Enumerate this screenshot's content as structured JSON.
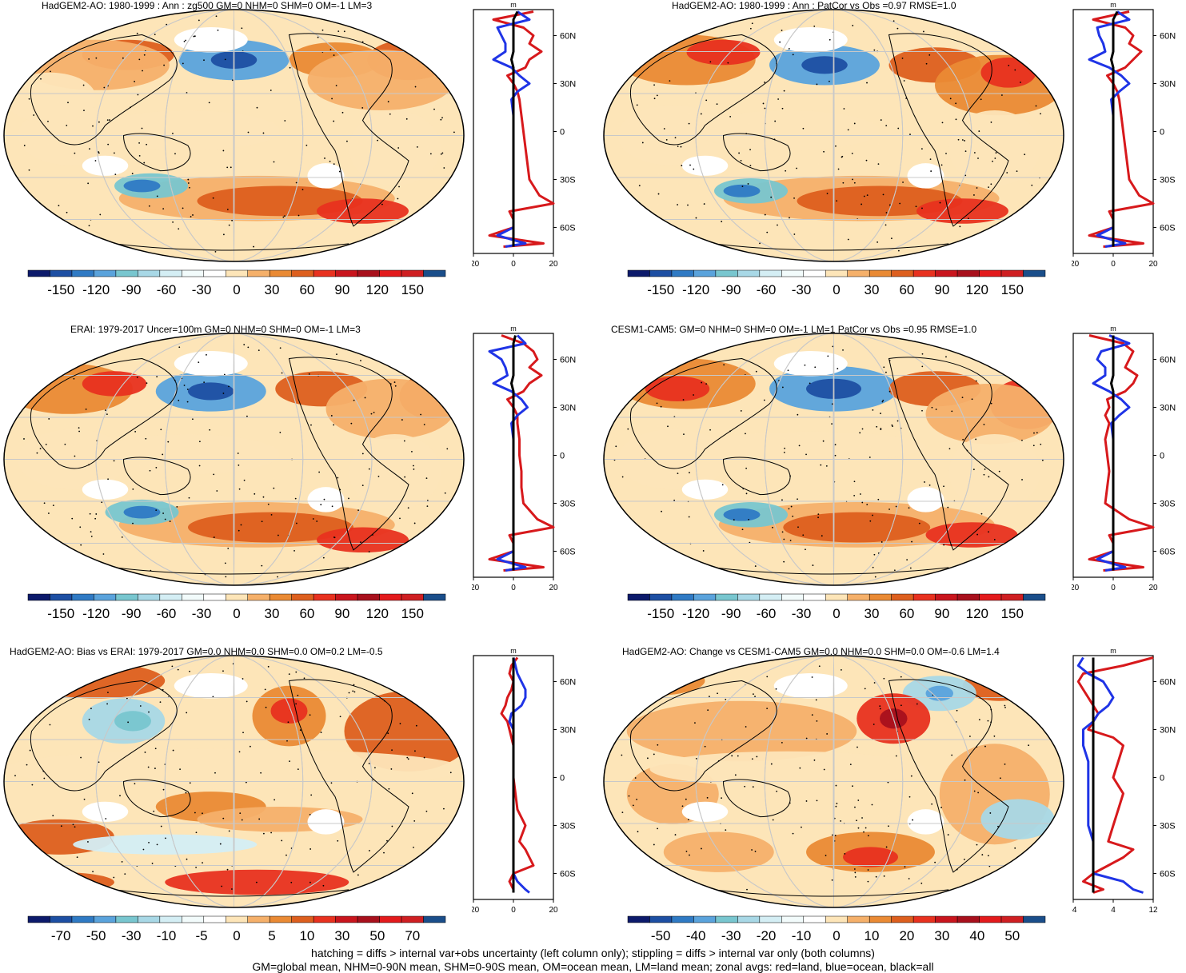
{
  "palette": {
    "blues": [
      "#0c1a6b",
      "#1d4fa3",
      "#2f7ac4",
      "#5aa3dc",
      "#78c6cf",
      "#a8d8e6",
      "#d4eef4",
      "#f2fbfb"
    ],
    "reds": [
      "#fde5b8",
      "#f5b06a",
      "#ea8a34",
      "#dd5f1e",
      "#e8311f",
      "#c9151d",
      "#a8101c",
      "#e31a1c",
      "#cf1f22"
    ],
    "zero": "#ffffff",
    "land_line": "#d7191c",
    "ocean_line": "#1f34e6",
    "all_line": "#000000"
  },
  "panels": [
    {
      "id": "p1",
      "title": "HadGEM2-AO: 1980-1999 : Ann : zg500 GM=0 NHM=0 SHM=0 OM=-1 LM=3",
      "colorbar_labels": [
        "-150",
        "-120",
        "-90",
        "-60",
        "-30",
        "0",
        "30",
        "60",
        "90",
        "120",
        "150"
      ],
      "zonal_header": "m",
      "zonal_xticks": [
        "-20",
        "0",
        "20"
      ],
      "zonal_yticks": [
        "60N",
        "30N",
        "0",
        "30S",
        "60S"
      ]
    },
    {
      "id": "p2",
      "title": "HadGEM2-AO: 1980-1999 : Ann : PatCor vs Obs =0.97 RMSE=1.0",
      "colorbar_labels": [
        "-150",
        "-120",
        "-90",
        "-60",
        "-30",
        "0",
        "30",
        "60",
        "90",
        "120",
        "150"
      ],
      "zonal_header": "m",
      "zonal_xticks": [
        "-20",
        "0",
        "20"
      ],
      "zonal_yticks": [
        "60N",
        "30N",
        "0",
        "30S",
        "60S"
      ]
    },
    {
      "id": "p3",
      "title": "ERAI: 1979-2017 Uncer=100m GM=0 NHM=0 SHM=0 OM=-1 LM=3",
      "colorbar_labels": [
        "-150",
        "-120",
        "-90",
        "-60",
        "-30",
        "0",
        "30",
        "60",
        "90",
        "120",
        "150"
      ],
      "zonal_header": "m",
      "zonal_xticks": [
        "-20",
        "0",
        "20"
      ],
      "zonal_yticks": [
        "60N",
        "30N",
        "0",
        "30S",
        "60S"
      ]
    },
    {
      "id": "p4",
      "title": "CESM1-CAM5: GM=0 NHM=0 SHM=0 OM=-1 LM=1 PatCor vs Obs =0.95 RMSE=1.0",
      "colorbar_labels": [
        "-150",
        "-120",
        "-90",
        "-60",
        "-30",
        "0",
        "30",
        "60",
        "90",
        "120",
        "150"
      ],
      "zonal_header": "m",
      "zonal_xticks": [
        "-20",
        "0",
        "20"
      ],
      "zonal_yticks": [
        "60N",
        "30N",
        "0",
        "30S",
        "60S"
      ]
    },
    {
      "id": "p5",
      "title": "HadGEM2-AO: Bias vs ERAI: 1979-2017 GM=0.0 NHM=0.0 SHM=0.0 OM=0.2 LM=-0.5",
      "colorbar_labels": [
        "-70",
        "-50",
        "-30",
        "-10",
        "-5",
        "0",
        "5",
        "10",
        "30",
        "50",
        "70"
      ],
      "zonal_header": "m",
      "zonal_xticks": [
        "-20",
        "0",
        "20"
      ],
      "zonal_yticks": [
        "60N",
        "30N",
        "0",
        "30S",
        "60S"
      ]
    },
    {
      "id": "p6",
      "title": "HadGEM2-AO: Change vs CESM1-CAM5 GM=0.0 NHM=0.0 SHM=0.0 OM=-0.6 LM=1.4",
      "colorbar_labels": [
        "-50",
        "-40",
        "-30",
        "-20",
        "-10",
        "0",
        "10",
        "20",
        "30",
        "40",
        "50"
      ],
      "zonal_header": "m",
      "zonal_xticks": [
        "-4",
        "4",
        "12"
      ],
      "zonal_yticks": [
        "60N",
        "30N",
        "0",
        "30S",
        "60S"
      ]
    }
  ],
  "footer": {
    "line1": "hatching = diffs > internal var+obs uncertainty (left column only); stippling = diffs > internal var only (both columns)",
    "line2": "GM=global mean, NHM=0-90N mean, SHM=0-90S mean, OM=ocean mean, LM=land mean; zonal avgs: red=land, blue=ocean, black=all"
  },
  "chart_data": [
    {
      "type": "heatmap",
      "title": "HadGEM2-AO: 1980-1999 : Ann : zg500 GM=0 NHM=0 SHM=0 OM=-1 LM=3",
      "colorbar": [
        -150,
        -120,
        -90,
        -60,
        -30,
        0,
        30,
        60,
        90,
        120,
        150
      ],
      "zonal_means": {
        "lat": [
          75,
          70,
          65,
          60,
          55,
          50,
          45,
          40,
          35,
          30,
          25,
          20,
          10,
          0,
          -10,
          -20,
          -30,
          -40,
          -45,
          -50,
          -55,
          -60,
          -65,
          -70,
          -72
        ],
        "land": [
          10,
          -10,
          5,
          10,
          8,
          14,
          8,
          6,
          -3,
          0,
          2,
          3,
          4,
          5,
          6,
          7,
          8,
          13,
          20,
          -2,
          0,
          0,
          -12,
          15,
          -5
        ],
        "ocean": [
          2,
          8,
          -8,
          -6,
          -4,
          -4,
          -10,
          -1,
          3,
          8,
          2,
          -1,
          0,
          0,
          0,
          0,
          0,
          0,
          0,
          0,
          0,
          0,
          -8,
          6,
          -4
        ],
        "all": [
          2,
          0,
          0,
          0,
          0,
          0,
          -1,
          0,
          0,
          0,
          0,
          0,
          0,
          0,
          0,
          0,
          0,
          0,
          0,
          0,
          0,
          0,
          0,
          0,
          0
        ]
      }
    },
    {
      "type": "heatmap",
      "title": "HadGEM2-AO: 1980-1999 : Ann : PatCor vs Obs =0.97 RMSE=1.0",
      "colorbar": [
        -150,
        -120,
        -90,
        -60,
        -30,
        0,
        30,
        60,
        90,
        120,
        150
      ],
      "zonal_means": {
        "lat": [
          75,
          70,
          65,
          60,
          55,
          50,
          45,
          40,
          35,
          30,
          25,
          20,
          10,
          0,
          -10,
          -20,
          -30,
          -40,
          -45,
          -50,
          -55,
          -60,
          -65,
          -70,
          -72
        ],
        "land": [
          8,
          -10,
          6,
          10,
          8,
          14,
          10,
          6,
          -3,
          0,
          2,
          3,
          4,
          5,
          6,
          7,
          8,
          13,
          20,
          -2,
          0,
          0,
          -12,
          15,
          -5
        ],
        "ocean": [
          2,
          8,
          -8,
          -7,
          -5,
          -4,
          -12,
          -2,
          4,
          8,
          3,
          -1,
          0,
          0,
          0,
          0,
          0,
          0,
          0,
          0,
          0,
          0,
          -8,
          6,
          -4
        ],
        "all": [
          2,
          0,
          0,
          0,
          0,
          0,
          -1,
          0,
          0,
          0,
          0,
          0,
          0,
          0,
          0,
          0,
          0,
          0,
          0,
          0,
          0,
          0,
          0,
          0,
          0
        ]
      }
    },
    {
      "type": "heatmap",
      "title": "ERAI: 1979-2017 Uncer=100m GM=0 NHM=0 SHM=0 OM=-1 LM=3",
      "colorbar": [
        -150,
        -120,
        -90,
        -60,
        -30,
        0,
        30,
        60,
        90,
        120,
        150
      ],
      "zonal_means": {
        "lat": [
          75,
          70,
          65,
          60,
          55,
          50,
          45,
          40,
          35,
          30,
          25,
          20,
          10,
          0,
          -10,
          -20,
          -30,
          -40,
          -45,
          -50,
          -55,
          -60,
          -65,
          -70,
          -72
        ],
        "land": [
          -6,
          5,
          10,
          12,
          8,
          14,
          8,
          5,
          -3,
          0,
          2,
          2,
          3,
          3,
          4,
          4,
          5,
          12,
          20,
          -2,
          0,
          0,
          -12,
          15,
          -5
        ],
        "ocean": [
          2,
          6,
          -12,
          -6,
          -4,
          -3,
          -10,
          -1,
          4,
          7,
          2,
          -1,
          0,
          0,
          0,
          0,
          0,
          0,
          0,
          0,
          0,
          0,
          -8,
          6,
          -4
        ],
        "all": [
          1,
          0,
          0,
          0,
          0,
          0,
          -1,
          0,
          0,
          0,
          0,
          0,
          0,
          0,
          0,
          0,
          0,
          0,
          0,
          0,
          0,
          0,
          0,
          0,
          0
        ]
      }
    },
    {
      "type": "heatmap",
      "title": "CESM1-CAM5: GM=0 NHM=0 SHM=0 OM=-1 LM=1 PatCor vs Obs =0.95 RMSE=1.0",
      "colorbar": [
        -150,
        -120,
        -90,
        -60,
        -30,
        0,
        30,
        60,
        90,
        120,
        150
      ],
      "zonal_means": {
        "lat": [
          75,
          70,
          65,
          60,
          55,
          50,
          45,
          40,
          35,
          30,
          25,
          20,
          10,
          0,
          -10,
          -20,
          -30,
          -40,
          -45,
          -50,
          -55,
          -60,
          -65,
          -70,
          -72
        ],
        "land": [
          -12,
          5,
          10,
          8,
          6,
          12,
          10,
          6,
          -3,
          -2,
          -4,
          -2,
          -4,
          -3,
          -2,
          -3,
          -4,
          8,
          20,
          -2,
          0,
          0,
          -12,
          15,
          -5
        ],
        "ocean": [
          -2,
          8,
          -6,
          -8,
          -4,
          -4,
          -10,
          -2,
          4,
          8,
          3,
          -1,
          0,
          0,
          0,
          0,
          0,
          0,
          0,
          0,
          0,
          0,
          -8,
          6,
          -4
        ],
        "all": [
          0,
          0,
          0,
          0,
          0,
          0,
          -1,
          0,
          0,
          0,
          0,
          0,
          0,
          0,
          0,
          0,
          0,
          0,
          0,
          0,
          0,
          0,
          0,
          0,
          0
        ]
      }
    },
    {
      "type": "heatmap",
      "title": "HadGEM2-AO: Bias vs ERAI: 1979-2017 GM=0.0 NHM=0.0 SHM=0.0 OM=0.2 LM=-0.5",
      "colorbar": [
        -70,
        -50,
        -30,
        -10,
        -5,
        0,
        5,
        10,
        30,
        50,
        70
      ],
      "zonal_means": {
        "lat": [
          75,
          70,
          65,
          60,
          55,
          50,
          45,
          40,
          35,
          30,
          25,
          20,
          10,
          0,
          -10,
          -20,
          -30,
          -40,
          -45,
          -50,
          -55,
          -60,
          -65,
          -70,
          -72
        ],
        "land": [
          2,
          -1,
          -2,
          0,
          -1,
          -3,
          -4,
          -6,
          -3,
          -2,
          -1,
          0,
          0,
          0,
          1,
          2,
          6,
          3,
          6,
          8,
          10,
          0,
          -2,
          0,
          0
        ],
        "ocean": [
          0,
          1,
          2,
          4,
          6,
          6,
          4,
          -1,
          -2,
          0,
          0,
          0,
          0,
          0,
          0,
          0,
          0,
          0,
          0,
          0,
          0,
          0,
          2,
          6,
          8
        ],
        "all": [
          0,
          0,
          0,
          0,
          0,
          0,
          0,
          0,
          0,
          0,
          0,
          0,
          0,
          0,
          0,
          0,
          0,
          0,
          0,
          0,
          0,
          0,
          0,
          0,
          0
        ]
      }
    },
    {
      "type": "heatmap",
      "title": "HadGEM2-AO: Change vs CESM1-CAM5 GM=0.0 NHM=0.0 SHM=0.0 OM=-0.6 LM=1.4",
      "colorbar": [
        -50,
        -40,
        -30,
        -20,
        -10,
        0,
        10,
        20,
        30,
        40,
        50
      ],
      "zonal_means": {
        "lat": [
          75,
          70,
          65,
          60,
          55,
          50,
          45,
          40,
          35,
          30,
          25,
          20,
          10,
          0,
          -10,
          -20,
          -30,
          -40,
          -45,
          -50,
          -55,
          -60,
          -65,
          -70,
          -72
        ],
        "land": [
          12,
          6,
          -2,
          -3,
          -2,
          -1,
          0,
          1,
          0,
          -1,
          4,
          6,
          5,
          4,
          6,
          5,
          4,
          3,
          8,
          6,
          3,
          0,
          -2,
          2,
          0
        ],
        "ocean": [
          -2,
          -3,
          -1,
          2,
          3,
          4,
          3,
          1,
          0,
          -2,
          -2,
          -2,
          -1,
          -1,
          -1,
          -1,
          -1,
          0,
          0,
          0,
          0,
          0,
          6,
          8,
          10
        ],
        "all": [
          0,
          0,
          0,
          0,
          0,
          0,
          0,
          0,
          0,
          0,
          0,
          0,
          0,
          0,
          0,
          0,
          0,
          0,
          0,
          0,
          0,
          0,
          0,
          0,
          0
        ]
      }
    }
  ]
}
